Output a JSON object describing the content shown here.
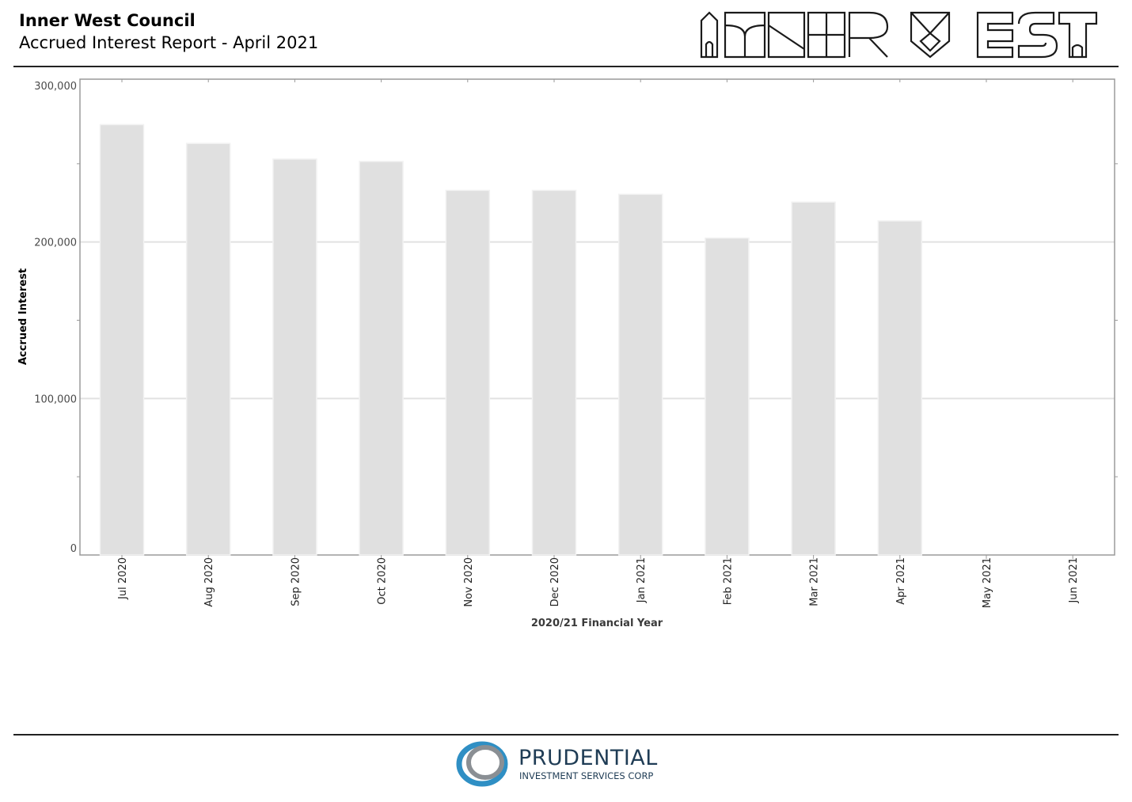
{
  "header": {
    "title": "Inner West Council",
    "subtitle": "Accrued Interest Report - April 2021",
    "logo_text": "INNER WEST"
  },
  "footer": {
    "brand": "PRUDENTIAL",
    "tagline": "INVESTMENT SERVICES CORP"
  },
  "colors": {
    "bar_fill": "#e0e0e0",
    "bar_stroke": "#f2f2f2",
    "grid": "#e2e2e2",
    "axis": "#9a9a9a",
    "brand_navy": "#1f3c55",
    "brand_blue": "#2f8fc4"
  },
  "chart_data": {
    "type": "bar",
    "categories": [
      "Jul 2020",
      "Aug 2020",
      "Sep 2020",
      "Oct 2020",
      "Nov 2020",
      "Dec 2020",
      "Jan 2021",
      "Feb 2021",
      "Mar 2021",
      "Apr 2021",
      "May 2021",
      "Jun 2021"
    ],
    "values": [
      275000,
      263000,
      253000,
      251500,
      233000,
      233000,
      230500,
      202500,
      225500,
      213500,
      null,
      null
    ],
    "xlabel": "2020/21 Financial Year",
    "ylabel": "Accrued Interest",
    "ylim": [
      0,
      300000
    ],
    "yticks": [
      {
        "value": 0,
        "label": "0"
      },
      {
        "value": 100000,
        "label": "100,000"
      },
      {
        "value": 200000,
        "label": "200,000"
      },
      {
        "value": 300000,
        "label": "300,000"
      }
    ],
    "grid": true,
    "legend": "none"
  }
}
